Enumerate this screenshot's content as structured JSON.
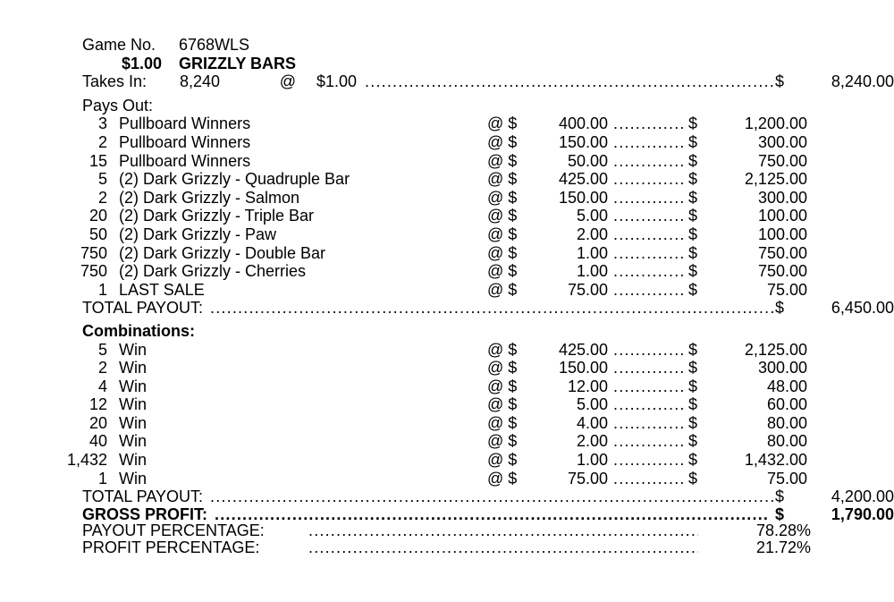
{
  "symbols": {
    "at_dollar": "@ $",
    "dollar": "$",
    "leader": "..........................................................................................................................................................................................................."
  },
  "header": {
    "game_no_label": "Game No.",
    "game_no_value": "6768WLS",
    "price_label": "$1.00",
    "game_name": "GRIZZLY BARS",
    "takes_in_label": "Takes In:",
    "takes_in_count": "8,240",
    "takes_in_at": "@",
    "takes_in_price": "$1.00",
    "takes_in_dollar": "$",
    "takes_in_total": "8,240.00"
  },
  "pays_out": {
    "section_label": "Pays Out:",
    "rows": [
      {
        "qty": "3",
        "desc": "Pullboard Winners",
        "price": "400.00",
        "amount": "1,200.00"
      },
      {
        "qty": "2",
        "desc": "Pullboard Winners",
        "price": "150.00",
        "amount": "300.00"
      },
      {
        "qty": "15",
        "desc": "Pullboard Winners",
        "price": "50.00",
        "amount": "750.00"
      },
      {
        "qty": "5",
        "desc": "(2) Dark Grizzly - Quadruple Bar",
        "price": "425.00",
        "amount": "2,125.00"
      },
      {
        "qty": "2",
        "desc": "(2) Dark Grizzly - Salmon",
        "price": "150.00",
        "amount": "300.00"
      },
      {
        "qty": "20",
        "desc": "(2) Dark Grizzly - Triple Bar",
        "price": "5.00",
        "amount": "100.00"
      },
      {
        "qty": "50",
        "desc": "(2) Dark Grizzly - Paw",
        "price": "2.00",
        "amount": "100.00"
      },
      {
        "qty": "750",
        "desc": "(2) Dark Grizzly - Double Bar",
        "price": "1.00",
        "amount": "750.00"
      },
      {
        "qty": "750",
        "desc": "(2) Dark Grizzly - Cherries",
        "price": "1.00",
        "amount": "750.00"
      },
      {
        "qty": "1",
        "desc": "LAST SALE",
        "price": "75.00",
        "amount": "75.00"
      }
    ],
    "total_label": "TOTAL PAYOUT:",
    "total_dollar": "$",
    "total_amount": "6,450.00"
  },
  "combinations": {
    "section_label": "Combinations:",
    "rows": [
      {
        "qty": "5",
        "desc": "Win",
        "price": "425.00",
        "amount": "2,125.00"
      },
      {
        "qty": "2",
        "desc": "Win",
        "price": "150.00",
        "amount": "300.00"
      },
      {
        "qty": "4",
        "desc": "Win",
        "price": "12.00",
        "amount": "48.00"
      },
      {
        "qty": "12",
        "desc": "Win",
        "price": "5.00",
        "amount": "60.00"
      },
      {
        "qty": "20",
        "desc": "Win",
        "price": "4.00",
        "amount": "80.00"
      },
      {
        "qty": "40",
        "desc": "Win",
        "price": "2.00",
        "amount": "80.00"
      },
      {
        "qty": "1,432",
        "desc": "Win",
        "price": "1.00",
        "amount": "1,432.00"
      },
      {
        "qty": "1",
        "desc": "Win",
        "price": "75.00",
        "amount": "75.00"
      }
    ],
    "total_label": "TOTAL PAYOUT:",
    "total_dollar": "$",
    "total_amount": "4,200.00"
  },
  "summary": {
    "gross_profit_label": "GROSS PROFIT:",
    "gross_profit_dollar": "$",
    "gross_profit_amount": "1,790.00",
    "payout_percentage_label": "PAYOUT PERCENTAGE:",
    "payout_percentage_value": "78.28%",
    "profit_percentage_label": "PROFIT PERCENTAGE:",
    "profit_percentage_value": "21.72%"
  }
}
